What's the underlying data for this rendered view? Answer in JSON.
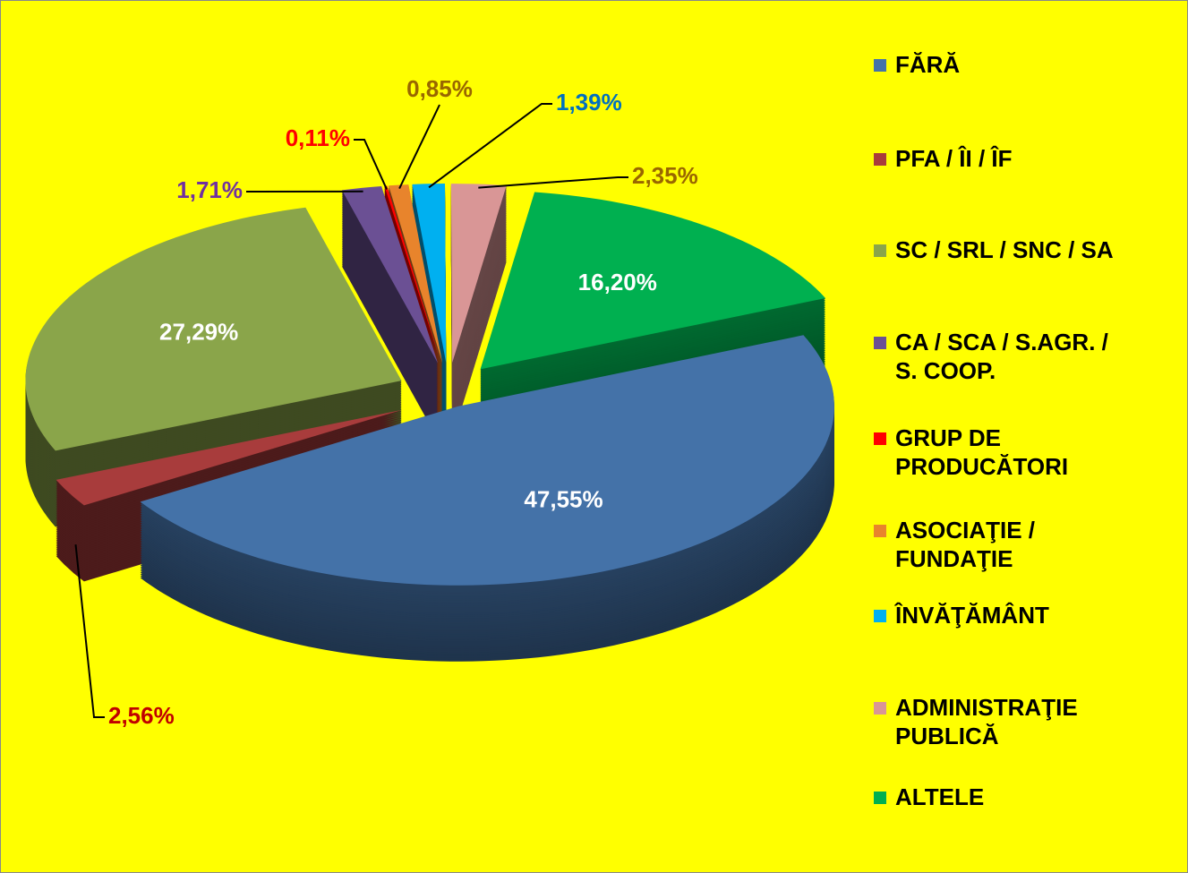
{
  "chart_data": {
    "type": "pie",
    "categories": [
      "FĂRĂ",
      "PFA / ÎI / ÎF",
      "SC / SRL / SNC / SA",
      "CA / SCA / S.AGR. /\nS. COOP.",
      "GRUP DE\nPRODUCĂTORI",
      "ASOCIAŢIE /\nFUNDAŢIE",
      "ÎNVĂŢĂMÂNT",
      "ADMINISTRAŢIE\nPUBLICĂ",
      "ALTELE"
    ],
    "values": [
      47.55,
      2.56,
      27.29,
      1.71,
      0.11,
      0.85,
      1.39,
      2.35,
      16.2
    ],
    "value_labels": [
      "47,55%",
      "2,56%",
      "27,29%",
      "1,71%",
      "0,11%",
      "0,85%",
      "1,39%",
      "2,35%",
      "16,20%"
    ],
    "colors": [
      "#4472a8",
      "#a83c3c",
      "#8aa54a",
      "#6b5094",
      "#ff0000",
      "#e8842c",
      "#00b0f0",
      "#d99696",
      "#00b050"
    ],
    "label_colors": [
      "#ffffff",
      "#c00000",
      "#ffffff",
      "#7030a0",
      "#ff0000",
      "#996600",
      "#0070c0",
      "#996600",
      "#ffffff"
    ],
    "legend": "right"
  }
}
